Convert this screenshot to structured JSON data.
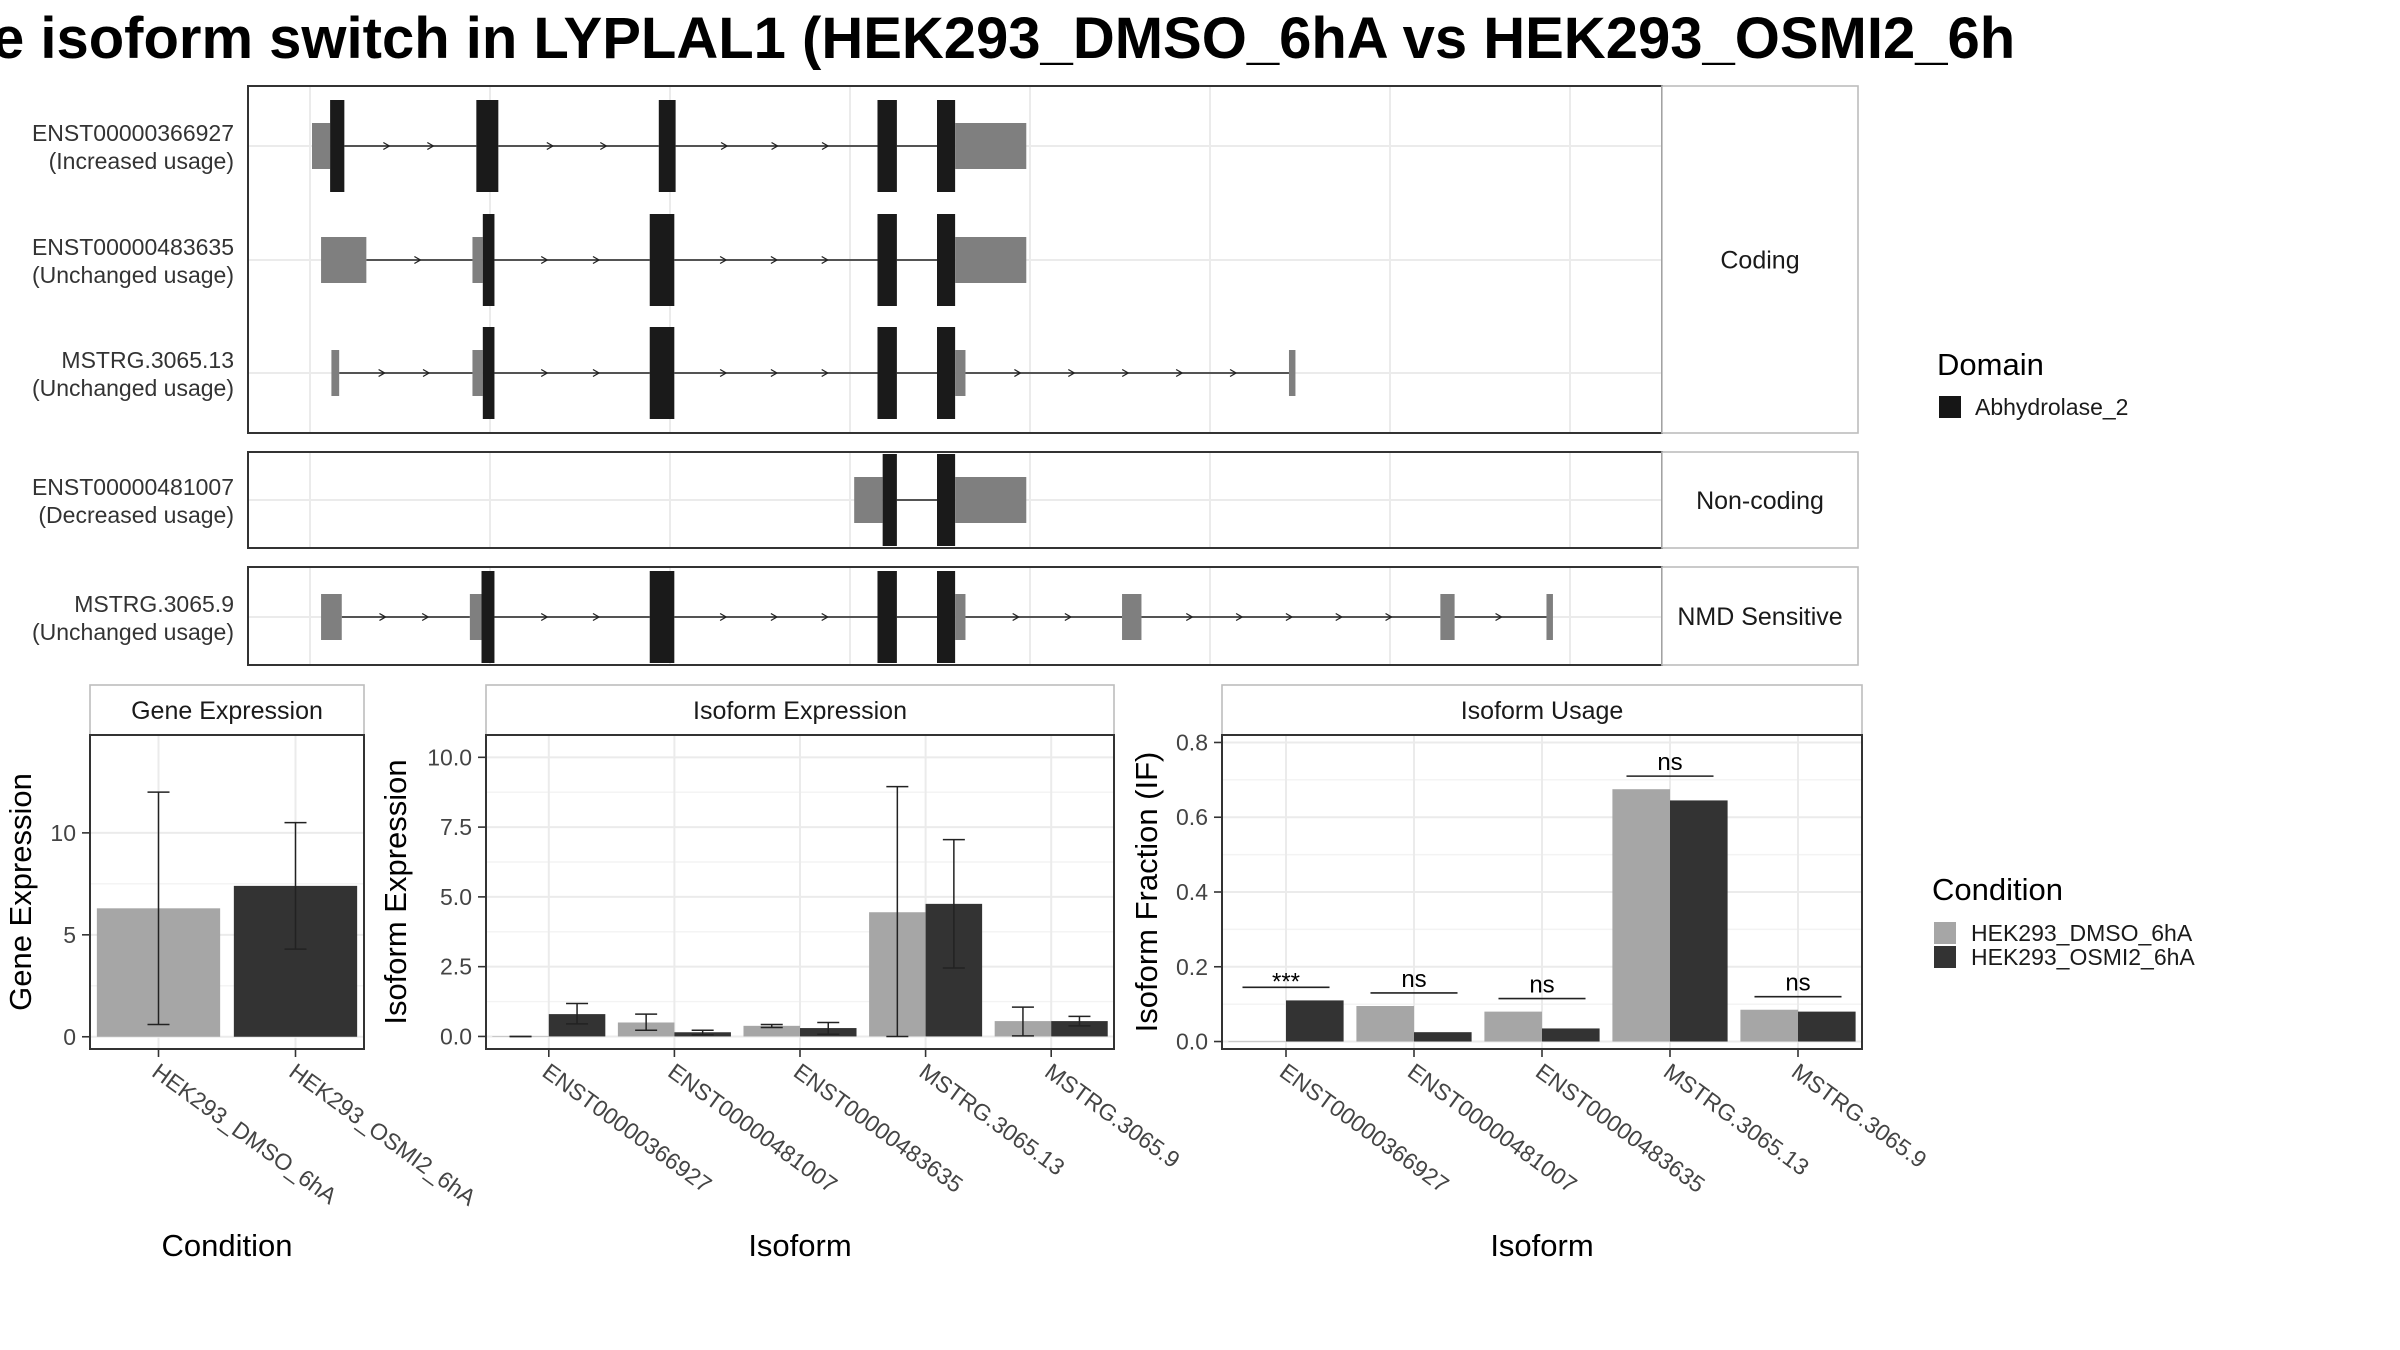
{
  "title": "e isoform switch in LYPLAL1 (HEK293_DMSO_6hA vs HEK293_OSMI2_6h",
  "colors": {
    "utr": "#7f7f7f",
    "cds": "#1a1a1a",
    "domain": "#161616",
    "cond1": "#a6a6a6",
    "cond2": "#333333"
  },
  "structure": {
    "genomic_x_domain": [
      0,
      1000
    ],
    "groups": [
      {
        "label": "Coding",
        "rows": [
          {
            "id": "ENST00000366927",
            "usage": "(Increased usage)",
            "exons": [
              [
                0,
                14,
                "utr"
              ],
              [
                14,
                25,
                "cds"
              ],
              [
                127,
                144,
                "cds"
              ],
              [
                268,
                281,
                "cds"
              ],
              [
                437,
                452,
                "cds"
              ],
              [
                483,
                497,
                "cds"
              ],
              [
                497,
                552,
                "utr"
              ]
            ]
          },
          {
            "id": "ENST00000483635",
            "usage": "(Unchanged usage)",
            "exons": [
              [
                7,
                42,
                "utr"
              ],
              [
                124,
                132,
                "utr"
              ],
              [
                132,
                141,
                "cds"
              ],
              [
                261,
                280,
                "cds"
              ],
              [
                437,
                452,
                "cds"
              ],
              [
                483,
                497,
                "cds"
              ],
              [
                497,
                552,
                "utr"
              ]
            ]
          },
          {
            "id": "MSTRG.3065.13",
            "usage": "(Unchanged usage)",
            "exons": [
              [
                15,
                21,
                "utr"
              ],
              [
                124,
                132,
                "utr"
              ],
              [
                132,
                141,
                "cds"
              ],
              [
                261,
                280,
                "cds"
              ],
              [
                437,
                452,
                "cds"
              ],
              [
                483,
                497,
                "cds"
              ],
              [
                497,
                505,
                "utr"
              ],
              [
                755,
                760,
                "utr"
              ]
            ]
          }
        ]
      },
      {
        "label": "Non-coding",
        "rows": [
          {
            "id": "ENST00000481007",
            "usage": "(Decreased usage)",
            "exons": [
              [
                419,
                441,
                "utr"
              ],
              [
                441,
                452,
                "cds"
              ],
              [
                483,
                497,
                "cds"
              ],
              [
                497,
                552,
                "utr"
              ]
            ]
          }
        ]
      },
      {
        "label": "NMD Sensitive",
        "rows": [
          {
            "id": "MSTRG.3065.9",
            "usage": "(Unchanged usage)",
            "exons": [
              [
                7,
                23,
                "utr"
              ],
              [
                122,
                131,
                "utr"
              ],
              [
                131,
                141,
                "cds"
              ],
              [
                261,
                280,
                "cds"
              ],
              [
                437,
                452,
                "cds"
              ],
              [
                483,
                497,
                "cds"
              ],
              [
                497,
                505,
                "utr"
              ],
              [
                626,
                641,
                "utr"
              ],
              [
                872,
                883,
                "utr"
              ],
              [
                954,
                959,
                "utr"
              ]
            ]
          }
        ]
      }
    ]
  },
  "legend_domain": {
    "title": "Domain",
    "items": [
      "Abhydrolase_2"
    ]
  },
  "legend_condition": {
    "title": "Condition",
    "items": [
      "HEK293_DMSO_6hA",
      "HEK293_OSMI2_6hA"
    ]
  },
  "chart_data": [
    {
      "type": "bar",
      "title": "Gene Expression",
      "xlabel": "Condition",
      "ylabel": "Gene Expression",
      "ylim": [
        -0.6,
        14.8
      ],
      "yticks": [
        0,
        5,
        10
      ],
      "categories": [
        "HEK293_DMSO_6hA",
        "HEK293_OSMI2_6hA"
      ],
      "values": [
        6.3,
        7.4
      ],
      "errors": [
        [
          0.6,
          12.0
        ],
        [
          4.3,
          10.5
        ]
      ]
    },
    {
      "type": "bar",
      "title": "Isoform Expression",
      "xlabel": "Isoform",
      "ylabel": "Isoform Expression",
      "ylim": [
        -0.45,
        10.8
      ],
      "yticks": [
        0.0,
        2.5,
        5.0,
        7.5,
        10.0
      ],
      "tick_labels": [
        "0.0",
        "2.5",
        "5.0",
        "7.5",
        "10.0"
      ],
      "categories": [
        "ENST00000366927",
        "ENST00000481007",
        "ENST00000483635",
        "MSTRG.3065.13",
        "MSTRG.3065.9"
      ],
      "series": [
        {
          "name": "HEK293_DMSO_6hA",
          "values": [
            0.0,
            0.5,
            0.38,
            4.45,
            0.55
          ],
          "errors": [
            [
              0.0,
              0.0
            ],
            [
              0.22,
              0.8
            ],
            [
              0.32,
              0.43
            ],
            [
              0.0,
              8.95
            ],
            [
              0.02,
              1.05
            ]
          ]
        },
        {
          "name": "HEK293_OSMI2_6hA",
          "values": [
            0.8,
            0.15,
            0.3,
            4.75,
            0.55
          ],
          "errors": [
            [
              0.45,
              1.18
            ],
            [
              0.06,
              0.22
            ],
            [
              0.08,
              0.5
            ],
            [
              2.45,
              7.05
            ],
            [
              0.38,
              0.72
            ]
          ]
        }
      ]
    },
    {
      "type": "bar",
      "title": "Isoform Usage",
      "xlabel": "Isoform",
      "ylabel": "Isoform Fraction (IF)",
      "ylim": [
        -0.02,
        0.82
      ],
      "yticks": [
        0.0,
        0.2,
        0.4,
        0.6,
        0.8
      ],
      "tick_labels": [
        "0.0",
        "0.2",
        "0.4",
        "0.6",
        "0.8"
      ],
      "categories": [
        "ENST00000366927",
        "ENST00000481007",
        "ENST00000483635",
        "MSTRG.3065.13",
        "MSTRG.3065.9"
      ],
      "series": [
        {
          "name": "HEK293_DMSO_6hA",
          "values": [
            0.0,
            0.095,
            0.08,
            0.675,
            0.085
          ]
        },
        {
          "name": "HEK293_OSMI2_6hA",
          "values": [
            0.11,
            0.025,
            0.035,
            0.645,
            0.08
          ]
        }
      ],
      "significance": [
        "***",
        "ns",
        "ns",
        "ns",
        "ns"
      ],
      "sig_y": [
        0.145,
        0.13,
        0.115,
        0.71,
        0.12
      ]
    }
  ]
}
